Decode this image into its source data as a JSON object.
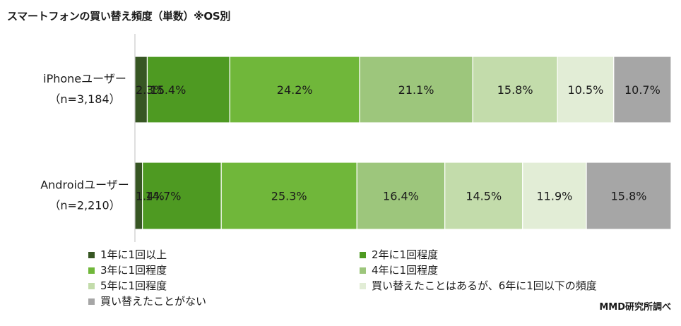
{
  "title": "スマートフォンの買い替え頻度（単数）※OS別",
  "source": "MMD研究所調べ",
  "chart_data": {
    "type": "bar",
    "orientation": "horizontal",
    "stacked": "100%",
    "categories": [
      {
        "name": "iPhoneユーザー",
        "n": "（n=3,184）"
      },
      {
        "name": "Androidユーザー",
        "n": "（n=2,210）"
      }
    ],
    "series": [
      {
        "name": "1年に1回以上",
        "color": "#375623",
        "values": [
          2.3,
          1.4
        ],
        "labels": [
          "2.3%",
          "1.4%"
        ]
      },
      {
        "name": "2年に1回程度",
        "color": "#4e9a22",
        "values": [
          15.4,
          14.7
        ],
        "labels": [
          "15.4%",
          "14.7%"
        ]
      },
      {
        "name": "3年に1回程度",
        "color": "#70b73a",
        "values": [
          24.2,
          25.3
        ],
        "labels": [
          "24.2%",
          "25.3%"
        ]
      },
      {
        "name": "4年に1回程度",
        "color": "#9dc67c",
        "values": [
          21.1,
          16.4
        ],
        "labels": [
          "21.1%",
          "16.4%"
        ]
      },
      {
        "name": "5年に1回程度",
        "color": "#c3dcab",
        "values": [
          15.8,
          14.5
        ],
        "labels": [
          "15.8%",
          "14.5%"
        ]
      },
      {
        "name": "買い替えたことはあるが、6年に1回以下の頻度",
        "color": "#e2edd6",
        "values": [
          10.5,
          11.9
        ],
        "labels": [
          "10.5%",
          "11.9%"
        ]
      },
      {
        "name": "買い替えたことがない",
        "color": "#a6a6a6",
        "values": [
          10.7,
          15.8
        ],
        "labels": [
          "10.7%",
          "15.8%"
        ]
      }
    ],
    "xlim": [
      0,
      100
    ],
    "grid": false,
    "legend_position": "bottom"
  }
}
